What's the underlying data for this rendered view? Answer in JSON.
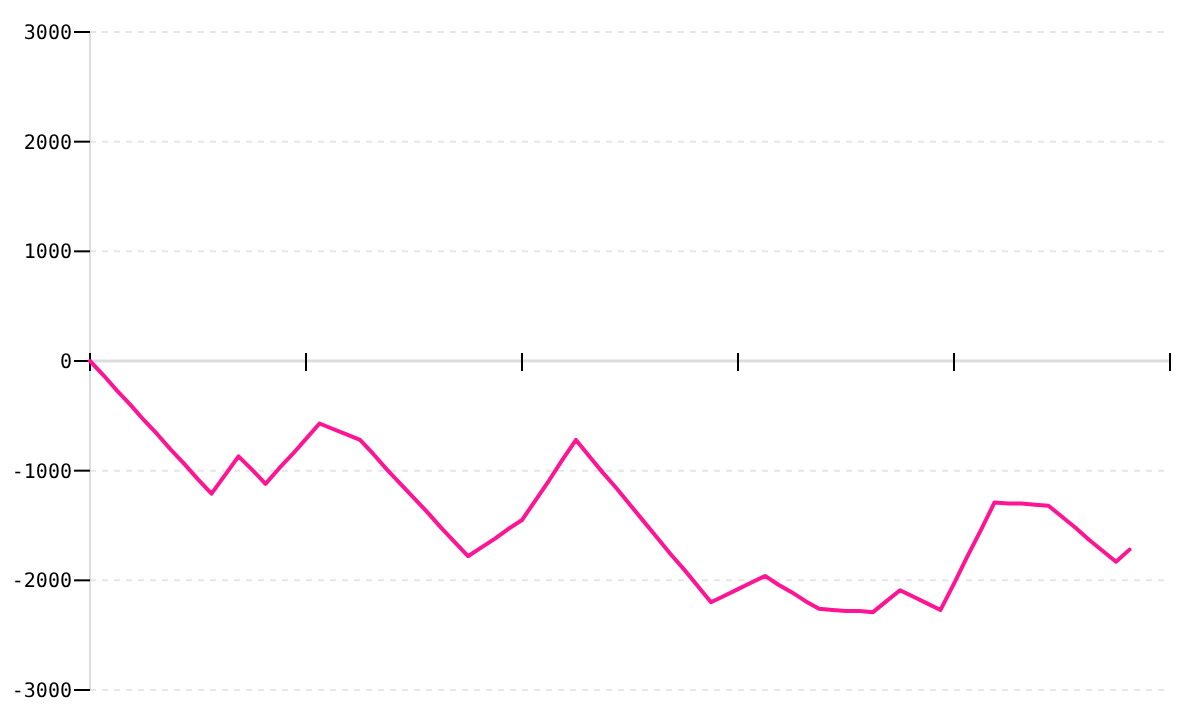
{
  "chart_data": {
    "type": "line",
    "categories": [
      null,
      null,
      null,
      null,
      null,
      null,
      null,
      null,
      null,
      null,
      null,
      null,
      null,
      null,
      null,
      null,
      null,
      null,
      null,
      null,
      null,
      null,
      null,
      null,
      null,
      null,
      null,
      null,
      null,
      null,
      null,
      null,
      null,
      null,
      null,
      null,
      null,
      null,
      null,
      null,
      null,
      null,
      null,
      null,
      null,
      null,
      null,
      null,
      null,
      null,
      null,
      null,
      null,
      null,
      null,
      null,
      null,
      null,
      null,
      null,
      null,
      null,
      null,
      null,
      null,
      null,
      null,
      null,
      null,
      null,
      null,
      null,
      null,
      null,
      null,
      null,
      null,
      null,
      null,
      null,
      null
    ],
    "series": [
      {
        "color": "#ff1493",
        "values": [
          0,
          -130,
          -270,
          -400,
          -540,
          -670,
          -810,
          -940,
          -1080,
          -1210,
          -1040,
          -870,
          -990,
          -1120,
          -980,
          -850,
          -710,
          -570,
          -620,
          -670,
          -720,
          -850,
          -990,
          -1120,
          -1250,
          -1380,
          -1520,
          -1650,
          -1780,
          -1700,
          -1620,
          -1530,
          -1450,
          -1270,
          -1090,
          -900,
          -720,
          -870,
          -1020,
          -1160,
          -1310,
          -1460,
          -1610,
          -1760,
          -1900,
          -2050,
          -2200,
          -2140,
          -2080,
          -2020,
          -1960,
          -2040,
          -2110,
          -2190,
          -2260,
          -2270,
          -2280,
          -2280,
          -2290,
          -2190,
          -2090,
          -2150,
          -2210,
          -2270,
          -2030,
          -1780,
          -1540,
          -1290,
          -1300,
          -1300,
          -1310,
          -1320,
          -1420,
          -1520,
          -1630,
          -1730,
          -1830,
          -1720,
          null,
          null,
          null
        ]
      }
    ],
    "ylim": [
      -3000,
      3000
    ],
    "yticks": [
      -3000,
      -2000,
      -1000,
      0,
      1000,
      2000,
      3000
    ],
    "grid": "y",
    "tick_labels": "y",
    "marker": "none",
    "line_style": "solid"
  }
}
